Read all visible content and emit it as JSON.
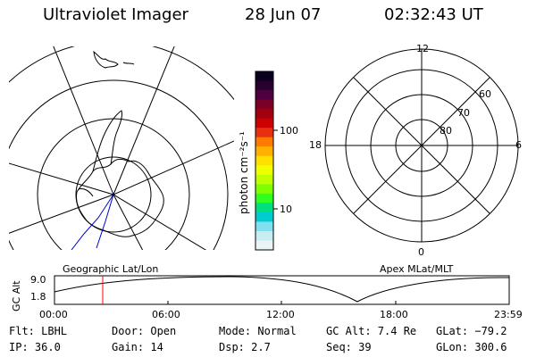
{
  "header": {
    "instrument": "Ultraviolet Imager",
    "date": "28 Jun 07",
    "time": "02:32:43 UT"
  },
  "colorbar": {
    "unit_label": "photon cm⁻²s⁻¹",
    "ticks": [
      "100",
      "10"
    ],
    "colors": [
      "#0a0020",
      "#2a0030",
      "#500040",
      "#7a0028",
      "#a00010",
      "#cc0000",
      "#e63010",
      "#ff7a00",
      "#ffb000",
      "#ffe000",
      "#f0ff00",
      "#bfff00",
      "#7fff00",
      "#30ff20",
      "#00e080",
      "#00ccd0",
      "#80e0ee",
      "#c8ecf2",
      "#e8f4f6"
    ]
  },
  "polar_grid": {
    "hour_labels": [
      "12",
      "18",
      "6",
      "0"
    ],
    "lat_labels": [
      "60",
      "70",
      "80"
    ]
  },
  "plot": {
    "left_label": "Geographic Lat/Lon",
    "right_label": "Apex MLat/MLT",
    "y_axis_title": "GC Alt",
    "y_ticks": [
      "9.0",
      "1.8"
    ],
    "x_ticks": [
      "00:00",
      "06:00",
      "12:00",
      "18:00",
      "23:59"
    ]
  },
  "status": {
    "filter": "Flt: LBHL",
    "door": "Door: Open",
    "mode": "Mode: Normal",
    "gc_alt": "GC Alt: 7.4 Re",
    "glat": "GLat: −79.2",
    "ip": "IP: 36.0",
    "gain": "Gain: 14",
    "dsp": "Dsp:    2.7",
    "seq": "Seq: 39",
    "glon": "GLon: 300.6"
  },
  "colors": {
    "line": "#000000",
    "marker": "#ff0000",
    "track": "#0000cc"
  }
}
